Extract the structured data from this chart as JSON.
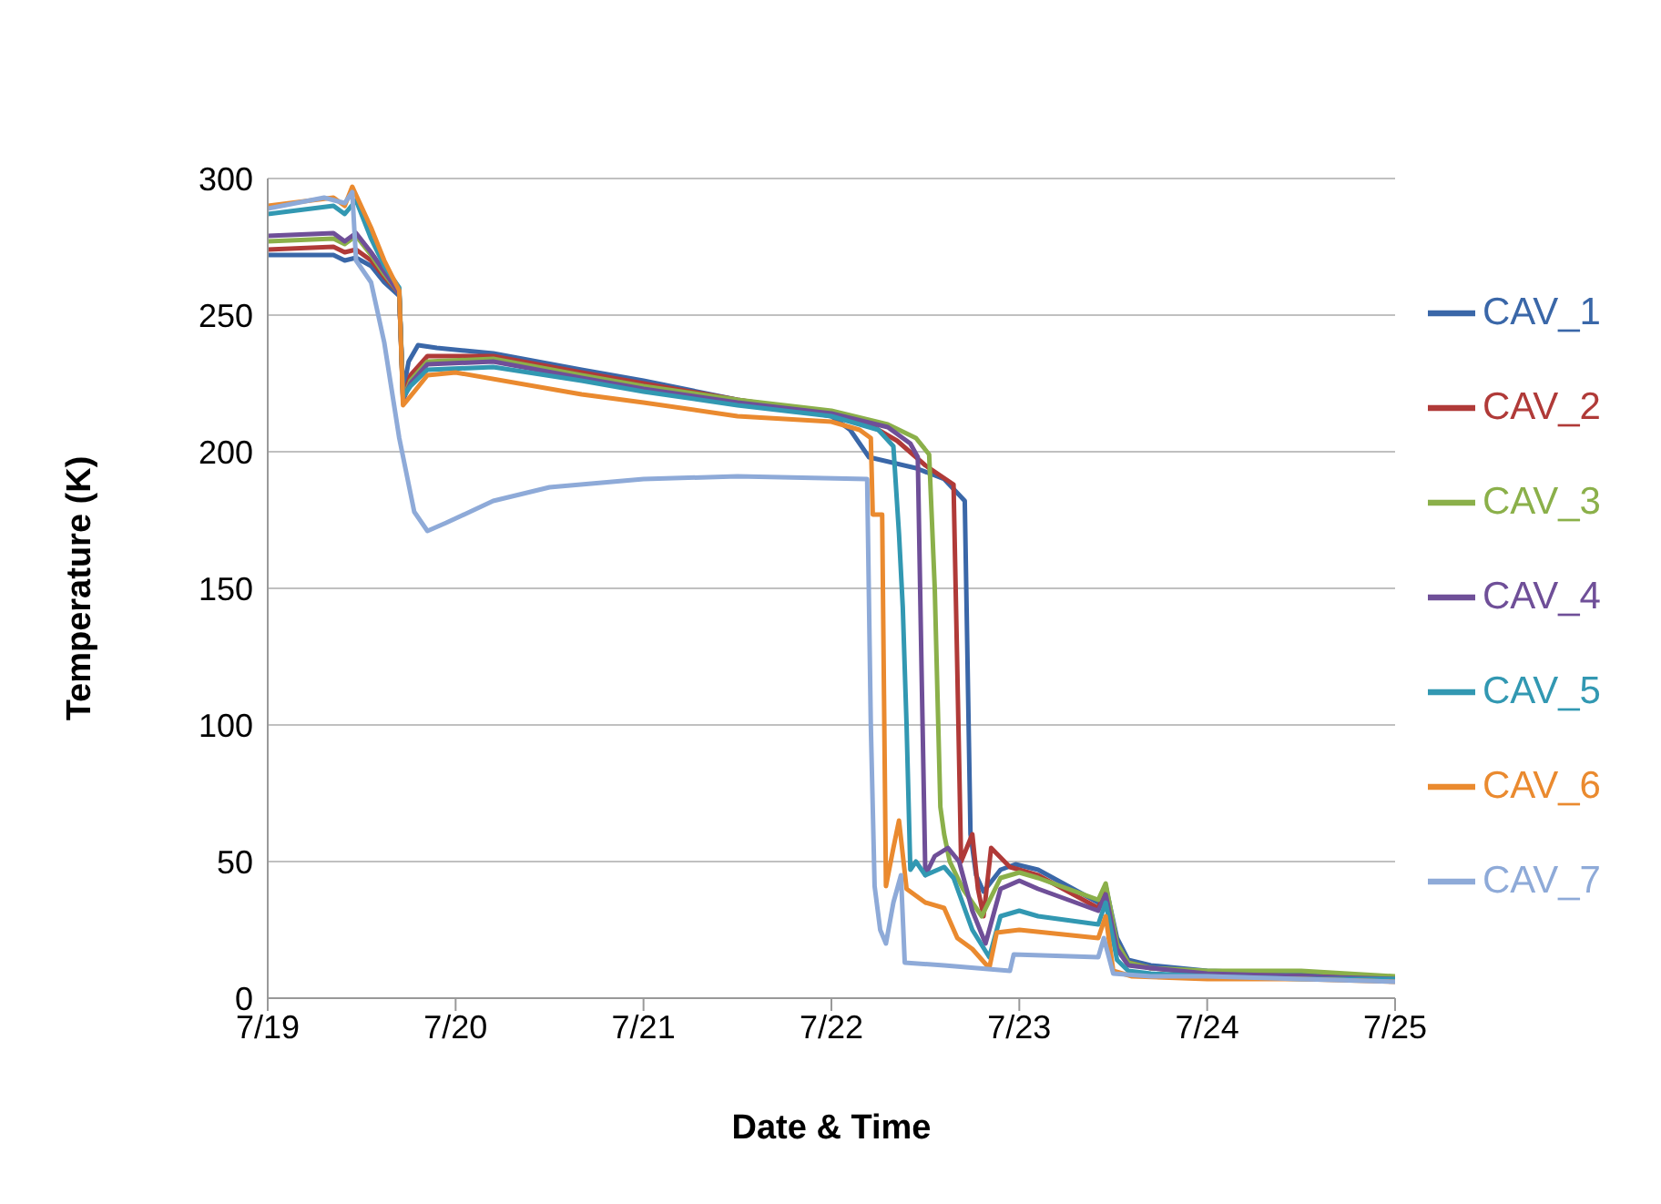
{
  "chart_data": {
    "type": "line",
    "xlabel": "Date & Time",
    "ylabel": "Temperature (K)",
    "xlim": [
      "--07-19",
      "--07-25"
    ],
    "xticks": [
      {
        "value": "--07-19",
        "label": "7/19"
      },
      {
        "value": "--07-20",
        "label": "7/20"
      },
      {
        "value": "--07-21",
        "label": "7/21"
      },
      {
        "value": "--07-22",
        "label": "7/22"
      },
      {
        "value": "--07-23",
        "label": "7/23"
      },
      {
        "value": "--07-24",
        "label": "7/24"
      },
      {
        "value": "--07-25",
        "label": "7/25"
      }
    ],
    "ylim": [
      0,
      300
    ],
    "yticks": [
      0,
      50,
      100,
      150,
      200,
      250,
      300
    ],
    "grid": "y",
    "legend": "right",
    "series": [
      {
        "name": "CAV_1",
        "color": "#3a67a8",
        "x": [
          "--07-19T00:00",
          "--07-19T08:24",
          "--07-19T09:50",
          "--07-19T11:17",
          "--07-19T13:12",
          "--07-19T14:53",
          "--07-19T16:48",
          "--07-19T17:17",
          "--07-19T18:00",
          "--07-19T19:12",
          "--07-19T21:36",
          "--07-20T04:48",
          "--07-20T16:05",
          "--07-21T00:00",
          "--07-21T12:00",
          "--07-22T00:00",
          "--07-22T02:24",
          "--07-22T04:48",
          "--07-22T10:48",
          "--07-22T14:24",
          "--07-22T17:02",
          "--07-22T17:46",
          "--07-22T18:29",
          "--07-22T19:26",
          "--07-22T21:36",
          "--07-22T23:31",
          "--07-23T02:24",
          "--07-23T10:05",
          "--07-23T11:02",
          "--07-23T12:29",
          "--07-23T13:55",
          "--07-23T16:48",
          "--07-24T00:00",
          "--07-24T12:00",
          "--07-25T00:00"
        ],
        "values": [
          272,
          272,
          270,
          271,
          268,
          262,
          257,
          222,
          233,
          239,
          238,
          236,
          230,
          226,
          219,
          213,
          208,
          198,
          194,
          190,
          182,
          60,
          45,
          39,
          47,
          49,
          47,
          35,
          41,
          22,
          14,
          12,
          10,
          9,
          7
        ]
      },
      {
        "name": "CAV_2",
        "color": "#b03a38",
        "x": [
          "--07-19T00:00",
          "--07-19T08:24",
          "--07-19T09:50",
          "--07-19T11:17",
          "--07-19T13:12",
          "--07-19T14:53",
          "--07-19T16:48",
          "--07-19T17:17",
          "--07-19T18:14",
          "--07-19T20:24",
          "--07-20T04:48",
          "--07-20T16:05",
          "--07-21T00:00",
          "--07-21T12:00",
          "--07-22T00:00",
          "--07-22T04:48",
          "--07-22T08:24",
          "--07-22T12:00",
          "--07-22T15:36",
          "--07-22T16:05",
          "--07-22T16:34",
          "--07-22T17:17",
          "--07-22T18:00",
          "--07-22T18:43",
          "--07-22T19:26",
          "--07-22T20:24",
          "--07-22T22:48",
          "--07-23T02:24",
          "--07-23T10:05",
          "--07-23T11:02",
          "--07-23T12:29",
          "--07-23T13:55",
          "--07-23T16:48",
          "--07-24T00:00",
          "--07-24T12:00",
          "--07-25T00:00"
        ],
        "values": [
          274,
          275,
          273,
          274,
          270,
          264,
          258,
          220,
          228,
          235,
          235,
          229,
          225,
          219,
          214,
          210,
          204,
          195,
          188,
          120,
          50,
          55,
          60,
          40,
          30,
          55,
          48,
          45,
          33,
          39,
          20,
          13,
          11,
          9,
          8,
          7
        ]
      },
      {
        "name": "CAV_3",
        "color": "#8bb04a",
        "x": [
          "--07-19T00:00",
          "--07-19T08:24",
          "--07-19T09:50",
          "--07-19T11:17",
          "--07-19T13:12",
          "--07-19T14:53",
          "--07-19T16:48",
          "--07-19T17:17",
          "--07-19T18:14",
          "--07-19T20:24",
          "--07-20T04:48",
          "--07-20T16:05",
          "--07-21T00:00",
          "--07-21T12:00",
          "--07-22T00:00",
          "--07-22T07:12",
          "--07-22T10:48",
          "--07-22T12:29",
          "--07-22T13:12",
          "--07-22T13:55",
          "--07-22T14:24",
          "--07-22T15:07",
          "--07-22T16:48",
          "--07-22T19:12",
          "--07-22T21:36",
          "--07-23T00:00",
          "--07-23T02:24",
          "--07-23T10:05",
          "--07-23T11:02",
          "--07-23T12:29",
          "--07-23T13:55",
          "--07-23T16:48",
          "--07-24T00:00",
          "--07-24T12:00",
          "--07-25T00:00"
        ],
        "values": [
          277,
          278,
          276,
          279,
          272,
          265,
          258,
          219,
          226,
          233,
          234,
          228,
          224,
          219,
          215,
          210,
          205,
          199,
          150,
          70,
          60,
          50,
          40,
          30,
          44,
          46,
          44,
          36,
          42,
          20,
          13,
          11,
          10,
          10,
          8
        ]
      },
      {
        "name": "CAV_4",
        "color": "#6f4f98",
        "x": [
          "--07-19T00:00",
          "--07-19T08:24",
          "--07-19T09:50",
          "--07-19T11:17",
          "--07-19T13:12",
          "--07-19T14:53",
          "--07-19T16:48",
          "--07-19T17:17",
          "--07-19T18:14",
          "--07-19T20:24",
          "--07-20T04:48",
          "--07-20T16:05",
          "--07-21T00:00",
          "--07-21T12:00",
          "--07-22T00:00",
          "--07-22T07:12",
          "--07-22T10:05",
          "--07-22T11:02",
          "--07-22T11:31",
          "--07-22T12:00",
          "--07-22T13:12",
          "--07-22T14:53",
          "--07-22T16:19",
          "--07-22T18:00",
          "--07-22T19:41",
          "--07-22T21:36",
          "--07-23T00:00",
          "--07-23T02:24",
          "--07-23T10:05",
          "--07-23T11:02",
          "--07-23T12:29",
          "--07-23T13:55",
          "--07-23T16:48",
          "--07-24T00:00",
          "--07-24T12:00",
          "--07-25T00:00"
        ],
        "values": [
          279,
          280,
          277,
          280,
          273,
          266,
          258,
          219,
          225,
          232,
          233,
          227,
          223,
          218,
          214,
          209,
          203,
          198,
          120,
          45,
          52,
          55,
          50,
          32,
          20,
          40,
          43,
          40,
          32,
          38,
          18,
          12,
          11,
          9,
          8,
          7
        ]
      },
      {
        "name": "CAV_5",
        "color": "#3298b2",
        "x": [
          "--07-19T00:00",
          "--07-19T08:24",
          "--07-19T09:50",
          "--07-19T11:17",
          "--07-19T13:12",
          "--07-19T14:53",
          "--07-19T16:48",
          "--07-19T17:17",
          "--07-19T18:14",
          "--07-19T20:24",
          "--07-20T04:48",
          "--07-20T16:05",
          "--07-21T00:00",
          "--07-21T12:00",
          "--07-22T00:00",
          "--07-22T06:00",
          "--07-22T07:55",
          "--07-22T08:38",
          "--07-22T09:07",
          "--07-22T09:36",
          "--07-22T10:05",
          "--07-22T10:48",
          "--07-22T12:00",
          "--07-22T14:24",
          "--07-22T15:36",
          "--07-22T18:00",
          "--07-22T20:10",
          "--07-22T21:36",
          "--07-23T00:00",
          "--07-23T02:24",
          "--07-23T10:05",
          "--07-23T11:02",
          "--07-23T12:29",
          "--07-23T13:55",
          "--07-23T16:48",
          "--07-24T00:00",
          "--07-24T12:00",
          "--07-25T00:00"
        ],
        "values": [
          287,
          290,
          287,
          292,
          278,
          268,
          260,
          220,
          224,
          230,
          231,
          226,
          222,
          217,
          213,
          208,
          202,
          170,
          143,
          100,
          47,
          50,
          45,
          48,
          44,
          25,
          15,
          30,
          32,
          30,
          27,
          35,
          14,
          10,
          9,
          8,
          7,
          7
        ]
      },
      {
        "name": "CAV_6",
        "color": "#ea8a2f",
        "x": [
          "--07-19T00:00",
          "--07-19T08:24",
          "--07-19T09:50",
          "--07-19T10:48",
          "--07-19T13:12",
          "--07-19T14:53",
          "--07-19T16:48",
          "--07-19T17:17",
          "--07-19T18:43",
          "--07-19T20:24",
          "--07-20T00:00",
          "--07-20T16:05",
          "--07-21T00:00",
          "--07-21T12:00",
          "--07-22T00:00",
          "--07-22T03:36",
          "--07-22T05:02",
          "--07-22T05:17",
          "--07-22T06:29",
          "--07-22T06:58",
          "--07-22T07:55",
          "--07-22T08:38",
          "--07-22T09:36",
          "--07-22T12:00",
          "--07-22T14:24",
          "--07-22T16:05",
          "--07-22T18:00",
          "--07-22T20:10",
          "--07-22T21:07",
          "--07-23T00:00",
          "--07-23T10:05",
          "--07-23T11:02",
          "--07-23T12:00",
          "--07-23T14:24",
          "--07-24T00:00",
          "--07-24T12:00",
          "--07-25T00:00"
        ],
        "values": [
          290,
          293,
          290,
          297,
          282,
          270,
          259,
          217,
          222,
          228,
          229,
          221,
          218,
          213,
          211,
          208,
          205,
          177,
          177,
          41,
          55,
          65,
          40,
          35,
          33,
          22,
          18,
          11,
          24,
          25,
          22,
          30,
          10,
          8,
          7,
          7,
          6
        ]
      },
      {
        "name": "CAV_7",
        "color": "#8eaad8",
        "x": [
          "--07-19T00:00",
          "--07-19T07:12",
          "--07-19T09:50",
          "--07-19T10:48",
          "--07-19T11:17",
          "--07-19T13:12",
          "--07-19T14:53",
          "--07-19T16:48",
          "--07-19T18:43",
          "--07-19T20:24",
          "--07-19T22:48",
          "--07-20T04:48",
          "--07-20T12:00",
          "--07-21T00:00",
          "--07-21T12:00",
          "--07-22T04:34",
          "--07-22T05:02",
          "--07-22T05:31",
          "--07-22T06:14",
          "--07-22T06:58",
          "--07-22T07:55",
          "--07-22T08:53",
          "--07-22T09:22",
          "--07-22T14:24",
          "--07-22T22:48",
          "--07-22T23:17",
          "--07-23T10:05",
          "--07-23T10:48",
          "--07-23T12:00",
          "--07-23T16:48",
          "--07-24T00:00",
          "--07-24T12:00",
          "--07-25T00:00"
        ],
        "values": [
          289,
          293,
          291,
          295,
          270,
          262,
          240,
          205,
          178,
          171,
          174,
          182,
          187,
          190,
          191,
          190,
          100,
          41,
          25,
          20,
          35,
          45,
          13,
          12,
          10,
          16,
          15,
          22,
          9,
          8,
          8,
          7,
          6
        ]
      }
    ]
  }
}
